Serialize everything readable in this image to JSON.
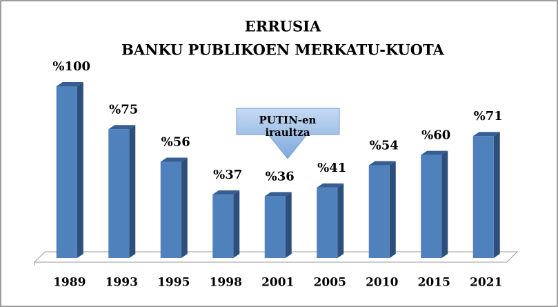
{
  "chart_data": {
    "type": "bar",
    "title": [
      "ERRUSIA",
      "BANKU PUBLIKOEN MERKATU-KUOTA"
    ],
    "categories": [
      "1989",
      "1993",
      "1995",
      "1998",
      "2001",
      "2005",
      "2010",
      "2015",
      "2021"
    ],
    "values": [
      100,
      75,
      56,
      37,
      36,
      41,
      54,
      60,
      71
    ],
    "value_labels": [
      "%100",
      "%75",
      "%56",
      "%37",
      "%36",
      "%41",
      "%54",
      "%60",
      "%71"
    ],
    "color": "#4f81bd",
    "annotation": [
      "PUTIN-en",
      "iraultza"
    ]
  }
}
